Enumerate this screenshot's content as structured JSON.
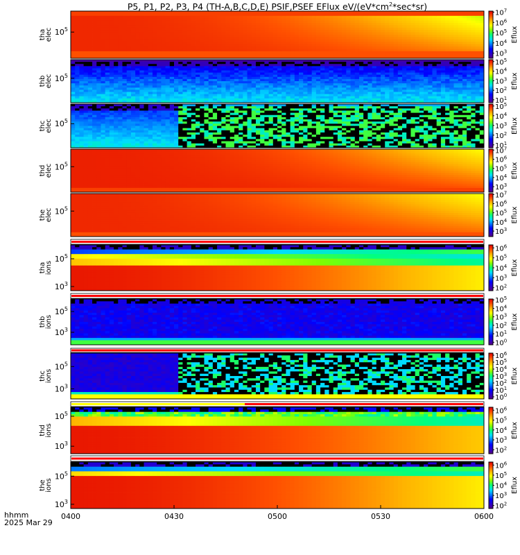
{
  "chart_data": {
    "type": "heatmap",
    "title": "P5, P1, P2, P3, P4 (TH-A,B,C,D,E) PSIF,PSEF EFlux eV/(eV*cm^2*sec*sr)",
    "title_parts": [
      "P5, P1, P2, P3, P4 (TH-A,B,C,D,E) PSIF,PSEF EFlux eV/(eV*cm",
      "2",
      "*sec*sr)"
    ],
    "x_ticks": [
      "0400",
      "0430",
      "0500",
      "0530",
      "0600"
    ],
    "x_range_minutes": [
      0,
      120
    ],
    "x_footer": [
      "hhmm",
      "2025 Mar 29"
    ],
    "colorbar_label": "Eflux",
    "panels": [
      {
        "id": "tha_elec",
        "ylabel": [
          "tha",
          "elec"
        ],
        "yticks": [
          {
            "base": "10",
            "exp": "5",
            "v": 5
          }
        ],
        "ylog": [
          3.5,
          6.2
        ],
        "cbar": {
          "min": 2.5,
          "max": 7.1,
          "ticks": [
            3,
            4,
            5,
            6,
            7
          ]
        }
      },
      {
        "id": "thb_elec",
        "ylabel": [
          "thb",
          "elec"
        ],
        "yticks": [
          {
            "base": "10",
            "exp": "5",
            "v": 5
          }
        ],
        "ylog": [
          3.3,
          6.3
        ],
        "cbar": {
          "min": 0.7,
          "max": 5.2,
          "ticks": [
            1,
            2,
            3,
            4,
            5
          ]
        }
      },
      {
        "id": "thc_elec",
        "ylabel": [
          "thc",
          "elec"
        ],
        "yticks": [
          {
            "base": "10",
            "exp": "5",
            "v": 5
          }
        ],
        "ylog": [
          3.4,
          6.3
        ],
        "cbar": {
          "min": 0.7,
          "max": 5.2,
          "ticks": [
            1,
            2,
            3,
            4,
            5
          ]
        }
      },
      {
        "id": "thd_elec",
        "ylabel": [
          "thd",
          "elec"
        ],
        "yticks": [
          {
            "base": "10",
            "exp": "5",
            "v": 5
          }
        ],
        "ylog": [
          3.4,
          6.1
        ],
        "cbar": {
          "min": 2.4,
          "max": 7.1,
          "ticks": [
            3,
            4,
            5,
            6,
            7
          ]
        }
      },
      {
        "id": "the_elec",
        "ylabel": [
          "the",
          "elec"
        ],
        "yticks": [
          {
            "base": "10",
            "exp": "5",
            "v": 5
          }
        ],
        "ylog": [
          3.4,
          6.1
        ],
        "cbar": {
          "min": 2.4,
          "max": 7.1,
          "ticks": [
            3,
            4,
            5,
            6,
            7
          ]
        }
      },
      {
        "id": "tha_ions",
        "ylabel": [
          "tha",
          "ions"
        ],
        "yticks": [
          {
            "base": "10",
            "exp": "5",
            "v": 5
          },
          {
            "base": "10",
            "exp": "3",
            "v": 3
          }
        ],
        "ylog": [
          2.7,
          6.0
        ],
        "cbar": {
          "min": 1.7,
          "max": 6.3,
          "ticks": [
            2,
            3,
            4,
            5,
            6
          ]
        }
      },
      {
        "id": "thb_ions",
        "ylabel": [
          "thb",
          "ions"
        ],
        "yticks": [
          {
            "base": "10",
            "exp": "5",
            "v": 5
          },
          {
            "base": "10",
            "exp": "3",
            "v": 3
          }
        ],
        "ylog": [
          1.8,
          6.2
        ],
        "cbar": {
          "min": -0.3,
          "max": 5.1,
          "ticks": [
            0,
            1,
            2,
            3,
            4,
            5
          ]
        }
      },
      {
        "id": "thc_ions",
        "ylabel": [
          "thc",
          "ions"
        ],
        "yticks": [
          {
            "base": "10",
            "exp": "5",
            "v": 5
          },
          {
            "base": "10",
            "exp": "3",
            "v": 3
          }
        ],
        "ylog": [
          2.1,
          6.2
        ],
        "cbar": {
          "min": -0.3,
          "max": 6.3,
          "ticks": [
            0,
            1,
            2,
            3,
            4,
            5,
            6
          ]
        }
      },
      {
        "id": "thd_ions",
        "ylabel": [
          "thd",
          "ions"
        ],
        "yticks": [
          {
            "base": "10",
            "exp": "5",
            "v": 5
          },
          {
            "base": "10",
            "exp": "3",
            "v": 3
          }
        ],
        "ylog": [
          2.5,
          5.6
        ],
        "cbar": {
          "min": 1.6,
          "max": 6.3,
          "ticks": [
            2,
            3,
            4,
            5,
            6
          ]
        }
      },
      {
        "id": "the_ions",
        "ylabel": [
          "the",
          "ions"
        ],
        "yticks": [
          {
            "base": "10",
            "exp": "5",
            "v": 5
          },
          {
            "base": "10",
            "exp": "3",
            "v": 3
          }
        ],
        "ylog": [
          2.7,
          6.0
        ],
        "cbar": {
          "min": 1.7,
          "max": 6.3,
          "ticks": [
            2,
            3,
            4,
            5,
            6
          ]
        }
      }
    ],
    "colormap": [
      "#5a007a",
      "#2a00c8",
      "#0000ff",
      "#0078ff",
      "#00dcff",
      "#00ff80",
      "#80ff00",
      "#ffff00",
      "#ffb400",
      "#ff5000",
      "#e00000"
    ]
  }
}
